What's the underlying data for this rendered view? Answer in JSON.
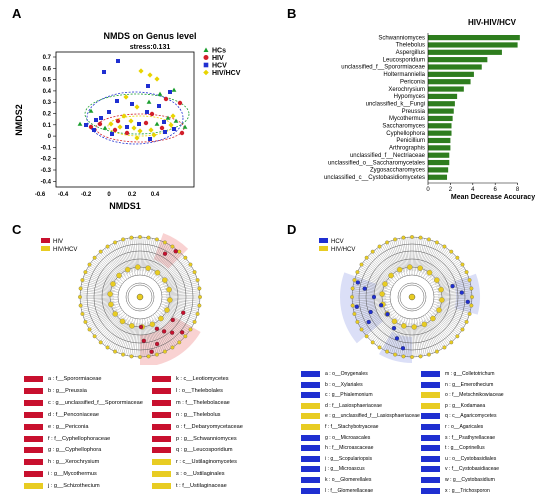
{
  "panels": {
    "A": "A",
    "B": "B",
    "C": "C",
    "D": "D"
  },
  "panelA": {
    "title": "NMDS on Genus level",
    "stress": "stress:0.131",
    "xlabel": "NMDS1",
    "ylabel": "NMDS2",
    "xticks": [
      "-0.6",
      "-0.4",
      "-0.2",
      "0",
      "0.2",
      "0.4"
    ],
    "yticks": [
      "0.7",
      "0.6",
      "0.5",
      "0.4",
      "0.3",
      "0.2",
      "0.1",
      "0",
      "-0.1",
      "-0.2",
      "-0.3",
      "-0.4"
    ],
    "legend": [
      {
        "label": "HCs",
        "color": "#1a9e2e",
        "shape": "triangle"
      },
      {
        "label": "HIV",
        "color": "#d11f2a",
        "shape": "circle"
      },
      {
        "label": "HCV",
        "color": "#1f2fd1",
        "shape": "square"
      },
      {
        "label": "HIV/HCV",
        "color": "#e8d400",
        "shape": "diamond"
      }
    ]
  },
  "chart_data": {
    "type": "bar",
    "title": "HIV-HIV/HCV",
    "xlabel": "Mean Decrease Accuracy",
    "ylabel": "",
    "xlim": [
      0,
      8
    ],
    "xticks": [
      "0",
      "2",
      "4",
      "6",
      "8"
    ],
    "bar_color": "#2e7d1e",
    "categories": [
      "Schwanniomyces",
      "Thelebolus",
      "Aspergillus",
      "Leucosporidium",
      "unclassified_f__Sporormiaceae",
      "Holtermanniella",
      "Periconia",
      "Xerochrysium",
      "Hypomyces",
      "unclassified_k__Fungi",
      "Preussia",
      "Mycothermus",
      "Saccharomyces",
      "Cyphellophora",
      "Penicillium",
      "Arthrographis",
      "unclassified_f__Nectriaceae",
      "unclassified_o__Saccharomycetales",
      "Zygosaccharomyces",
      "unclassified_c__Cystobasidiomycetes"
    ],
    "values": [
      8.2,
      8.0,
      6.6,
      5.3,
      4.8,
      4.1,
      3.8,
      3.2,
      2.6,
      2.4,
      2.3,
      2.2,
      2.1,
      2.1,
      2.0,
      2.0,
      1.9,
      1.9,
      1.8,
      1.7
    ]
  },
  "panelC": {
    "legend": [
      {
        "label": "HIV",
        "color": "#c8102e"
      },
      {
        "label": "HIV/HCV",
        "color": "#e8cc22"
      }
    ],
    "tax_left": [
      "a : f__Sporormiaceae",
      "b : g__Preussia",
      "c : g__unclassified_f__Sporormiaceae",
      "d : f__Penconiaceae",
      "e : g__Periconia",
      "f : f__Cyphellophoraceae",
      "g : g__Cyphellophora",
      "h : g__Xerochrysium",
      "i : g__Mycothermus",
      "j : g__Schizothecium"
    ],
    "tax_left_colors": [
      "#c8102e",
      "#c8102e",
      "#c8102e",
      "#c8102e",
      "#c8102e",
      "#c8102e",
      "#c8102e",
      "#c8102e",
      "#c8102e",
      "#e8cc22"
    ],
    "tax_right": [
      "k : c__Leotiomycetes",
      "l : o__Thelebolales",
      "m : f__Thelebolaceae",
      "n : g__Thelebolus",
      "o : f__Debaryomycetaceae",
      "p : g__Schwanniomyces",
      "q : g__Leucosporidium",
      "r : c__Ustilaginomycetes",
      "s : o__Ustilaginales",
      "t : f__Ustilaginaceae"
    ],
    "tax_right_colors": [
      "#c8102e",
      "#c8102e",
      "#c8102e",
      "#c8102e",
      "#c8102e",
      "#c8102e",
      "#c8102e",
      "#e8cc22",
      "#e8cc22",
      "#e8cc22"
    ]
  },
  "panelD": {
    "legend": [
      {
        "label": "HCV",
        "color": "#1f2fd1"
      },
      {
        "label": "HIV/HCV",
        "color": "#e8cc22"
      }
    ],
    "tax_left": [
      "a : o__Onygenales",
      "b : o__Xylariales",
      "c : g__Phialemonium",
      "d : f__Lasiosphaeriaceae",
      "e : g__unclassified_f__Lasiosphaeriaceae",
      "f : f__Stachybotryaceae",
      "g : o__Microascales",
      "h : f__Microascaceae",
      "i : g__Scopulariopsis",
      "j : g__Microascus",
      "k : o__Glomerellales",
      "l : f__Glomerellaceae"
    ],
    "tax_left_colors": [
      "#1f2fd1",
      "#1f2fd1",
      "#1f2fd1",
      "#e8cc22",
      "#e8cc22",
      "#e8cc22",
      "#1f2fd1",
      "#1f2fd1",
      "#1f2fd1",
      "#1f2fd1",
      "#1f2fd1",
      "#1f2fd1"
    ],
    "tax_right": [
      "m : g__Colletotrichum",
      "n : g__Emerothecium",
      "o : f__Metschnikowiaceae",
      "p : g__Kodamaea",
      "q : c__Agaricomycetes",
      "r : o__Agaricales",
      "s : f__Psathyrellaceae",
      "t : g__Coprinellus",
      "u : o__Cystobasidiales",
      "v : f__Cystobasidiaceae",
      "w : g__Cystobasidium",
      "x : g__Trichosporon"
    ],
    "tax_right_colors": [
      "#1f2fd1",
      "#1f2fd1",
      "#e8cc22",
      "#e8cc22",
      "#1f2fd1",
      "#1f2fd1",
      "#1f2fd1",
      "#1f2fd1",
      "#1f2fd1",
      "#1f2fd1",
      "#1f2fd1",
      "#1f2fd1"
    ]
  }
}
